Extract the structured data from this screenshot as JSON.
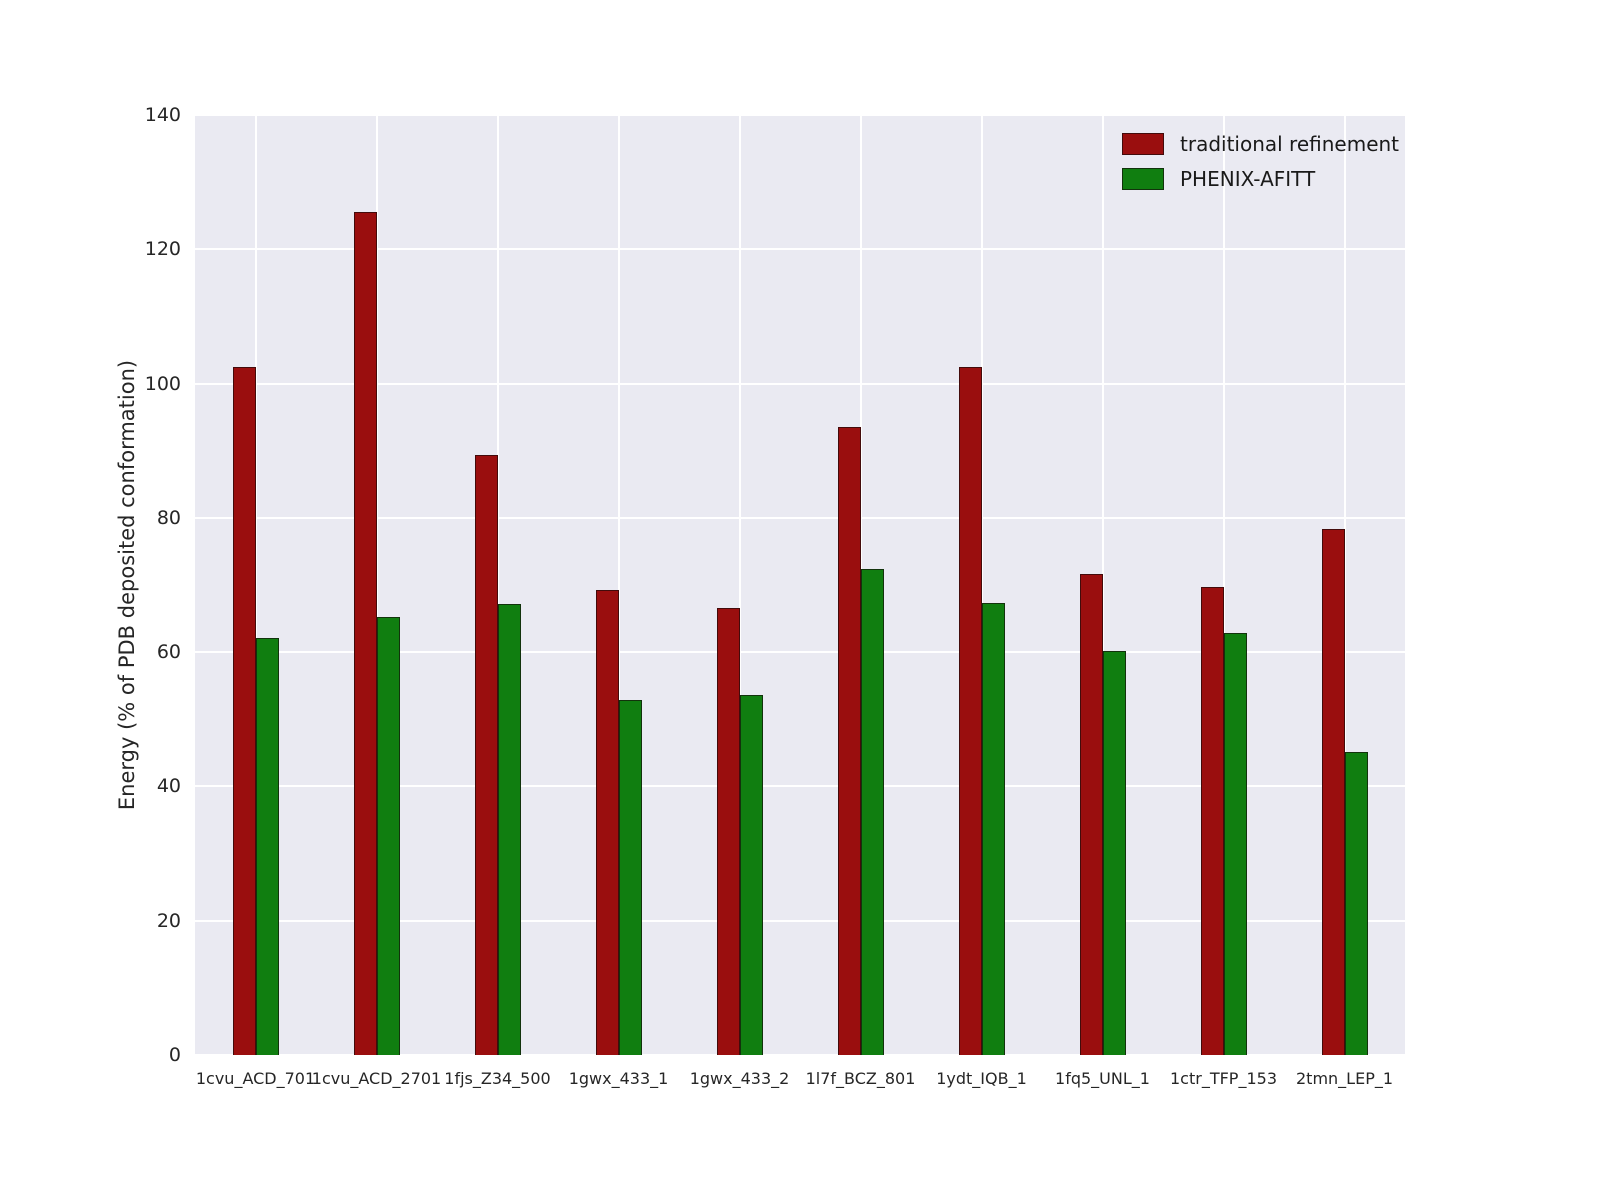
{
  "chart_data": {
    "type": "bar",
    "title": "",
    "xlabel": "",
    "ylabel": "Energy (% of PDB deposited conformation)",
    "ylim": [
      0,
      140
    ],
    "yticks": [
      0,
      20,
      40,
      60,
      80,
      100,
      120,
      140
    ],
    "grid": true,
    "legend_position": "upper right",
    "plot_background": "#eaeaf2",
    "categories": [
      "1cvu_ACD_701",
      "1cvu_ACD_2701",
      "1fjs_Z34_500",
      "1gwx_433_1",
      "1gwx_433_2",
      "1l7f_BCZ_801",
      "1ydt_IQB_1",
      "1fq5_UNL_1",
      "1ctr_TFP_153",
      "2tmn_LEP_1"
    ],
    "series": [
      {
        "name": "traditional refinement",
        "color": "#9a0e0e",
        "values": [
          102.5,
          125.5,
          89.3,
          69.3,
          66.6,
          93.6,
          102.5,
          71.6,
          69.7,
          78.3
        ]
      },
      {
        "name": "PHENIX-AFITT",
        "color": "#107e10",
        "values": [
          62.1,
          65.2,
          67.1,
          52.9,
          53.6,
          72.4,
          67.3,
          60.2,
          62.9,
          45.2
        ]
      }
    ]
  }
}
